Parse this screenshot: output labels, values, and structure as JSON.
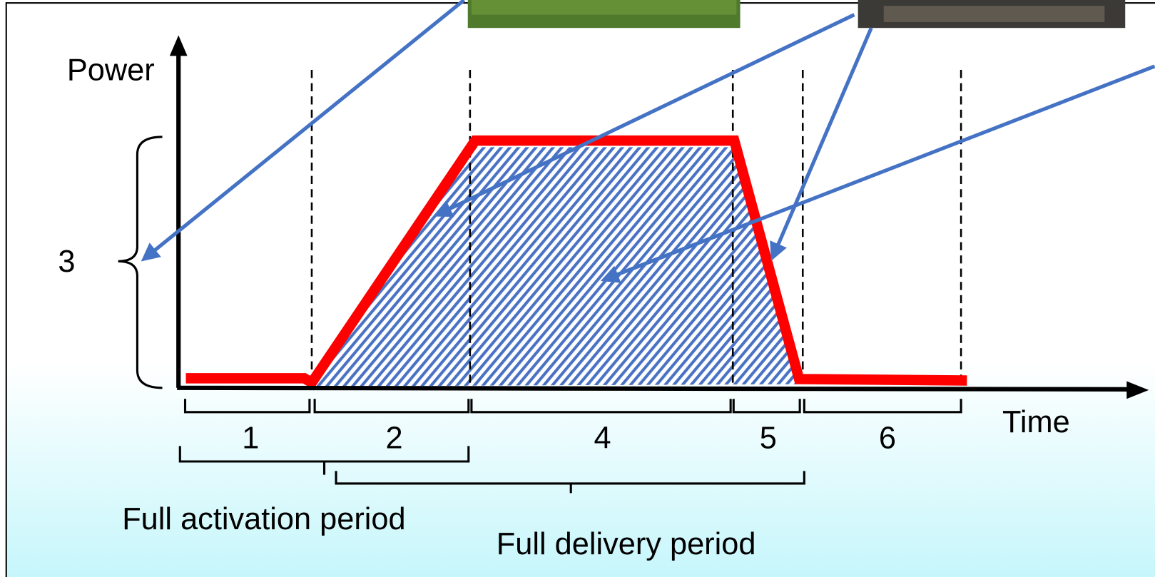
{
  "axis": {
    "y_label": "Power",
    "x_label": "Time"
  },
  "bracket_label": "3",
  "segments": [
    "1",
    "2",
    "4",
    "5",
    "6"
  ],
  "periods": {
    "activation": "Full activation period",
    "delivery": "Full delivery period"
  }
}
